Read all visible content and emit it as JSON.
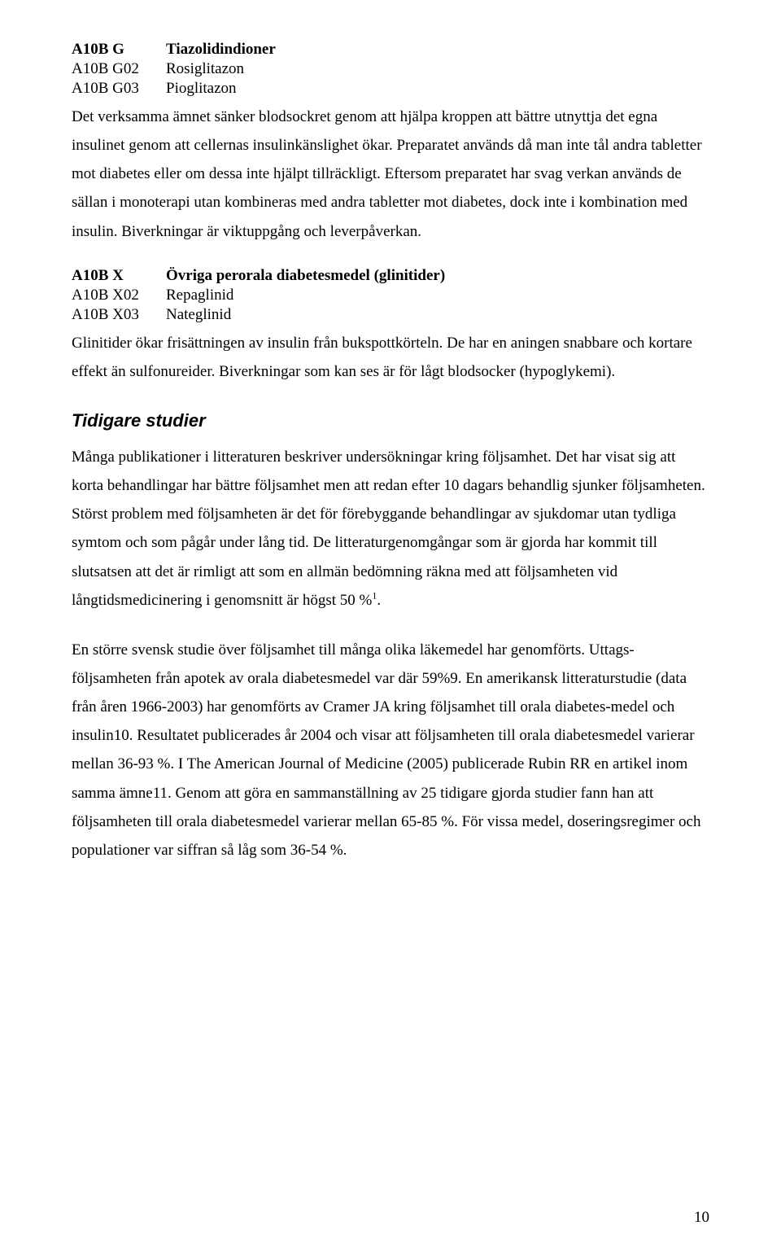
{
  "groupG": {
    "header_code": "A10B G",
    "header_label": "Tiazolidindioner",
    "items": [
      {
        "code": "A10B G02",
        "label": "Rosiglitazon"
      },
      {
        "code": "A10B G03",
        "label": "Pioglitazon"
      }
    ],
    "paragraph": "Det verksamma ämnet sänker blodsockret genom att hjälpa kroppen att bättre utnyttja det egna insulinet genom att cellernas insulinkänslighet ökar. Preparatet används då man inte tål andra tabletter mot diabetes eller om dessa inte hjälpt tillräckligt. Eftersom preparatet har svag verkan används de sällan i monoterapi utan kombineras med andra tabletter mot diabetes, dock inte i kombination med insulin. Biverkningar är viktuppgång och leverpåverkan."
  },
  "groupX": {
    "header_code": "A10B X",
    "header_label": "Övriga perorala diabetesmedel (glinitider)",
    "items": [
      {
        "code": "A10B X02",
        "label": "Repaglinid"
      },
      {
        "code": "A10B X03",
        "label": "Nateglinid"
      }
    ],
    "paragraph": "Glinitider ökar frisättningen av insulin från bukspottkörteln. De har en aningen snabbare och kortare effekt än sulfonureider. Biverkningar som kan ses är för lågt blodsocker (hypoglykemi)."
  },
  "studies": {
    "heading": "Tidigare studier",
    "p1a": "Många publikationer i litteraturen beskriver undersökningar kring följsamhet. Det har visat sig att korta behandlingar har bättre följsamhet men att redan efter 10 dagars behandlig sjunker följsamheten. Störst problem med följsamheten är det för förebyggande behandlingar av sjukdomar utan tydliga symtom och som pågår under lång tid. De litteraturgenomgångar som är gjorda har kommit till slutsatsen att det är rimligt att som en allmän bedömning räkna med att följsamheten vid långtidsmedicinering i genomsnitt är högst 50 %",
    "p1_sup": "1",
    "p1b": ".",
    "p2": "En större svensk studie över följsamhet till många olika läkemedel har genomförts. Uttags-följsamheten från apotek av orala diabetesmedel var där 59%9. En amerikansk litteraturstudie (data från åren 1966-2003) har genomförts av Cramer JA kring följsamhet till orala diabetes-medel och insulin10. Resultatet publicerades år 2004 och visar att följsamheten till orala diabetesmedel varierar mellan 36-93 %. I The American Journal of Medicine (2005) publicerade Rubin RR en artikel inom samma ämne11. Genom att göra en sammanställning av 25 tidigare gjorda studier fann han att följsamheten till orala diabetesmedel varierar mellan 65-85 %. För vissa medel, doseringsregimer och populationer var siffran så låg som 36-54 %."
  },
  "page_number": "10"
}
